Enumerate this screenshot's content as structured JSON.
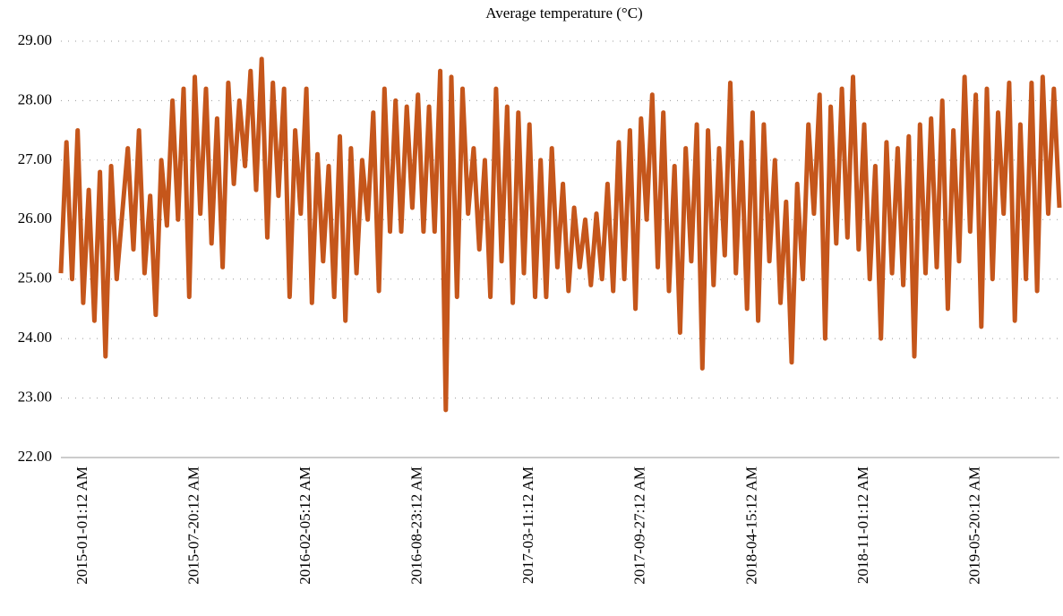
{
  "chart_data": {
    "type": "line",
    "title": "Average temperature (°C)",
    "color": "#c5561b",
    "grid": true,
    "ylim": [
      22,
      29
    ],
    "yticks": [
      {
        "value": 22,
        "label": "22.00"
      },
      {
        "value": 23,
        "label": "23.00"
      },
      {
        "value": 24,
        "label": "24.00"
      },
      {
        "value": 25,
        "label": "25.00"
      },
      {
        "value": 26,
        "label": "26.00"
      },
      {
        "value": 27,
        "label": "27.00"
      },
      {
        "value": 28,
        "label": "28.00"
      },
      {
        "value": 29,
        "label": "29.00"
      }
    ],
    "categories": [
      null,
      null,
      null,
      null,
      "2015-01-01:12 AM",
      null,
      null,
      null,
      null,
      null,
      null,
      null,
      null,
      null,
      null,
      null,
      null,
      null,
      null,
      null,
      null,
      null,
      null,
      null,
      "2015-07-20:12 AM",
      null,
      null,
      null,
      null,
      null,
      null,
      null,
      null,
      null,
      null,
      null,
      null,
      null,
      null,
      null,
      null,
      null,
      null,
      null,
      "2016-02-05:12 AM",
      null,
      null,
      null,
      null,
      null,
      null,
      null,
      null,
      null,
      null,
      null,
      null,
      null,
      null,
      null,
      null,
      null,
      null,
      null,
      "2016-08-23:12 AM",
      null,
      null,
      null,
      null,
      null,
      null,
      null,
      null,
      null,
      null,
      null,
      null,
      null,
      null,
      null,
      null,
      null,
      null,
      null,
      "2017-03-11:12 AM",
      null,
      null,
      null,
      null,
      null,
      null,
      null,
      null,
      null,
      null,
      null,
      null,
      null,
      null,
      null,
      null,
      null,
      null,
      null,
      "2017-09-27:12 AM",
      null,
      null,
      null,
      null,
      null,
      null,
      null,
      null,
      null,
      null,
      null,
      null,
      null,
      null,
      null,
      null,
      null,
      null,
      null,
      "2018-04-15:12 AM",
      null,
      null,
      null,
      null,
      null,
      null,
      null,
      null,
      null,
      null,
      null,
      null,
      null,
      null,
      null,
      null,
      null,
      null,
      null,
      "2018-11-01:12 AM",
      null,
      null,
      null,
      null,
      null,
      null,
      null,
      null,
      null,
      null,
      null,
      null,
      null,
      null,
      null,
      null,
      null,
      null,
      null,
      "2019-05-20:12 AM",
      null,
      null,
      null,
      null,
      null,
      null,
      null,
      null,
      null,
      null,
      null,
      null,
      null,
      null,
      null
    ],
    "values": [
      25.1,
      27.3,
      25.0,
      27.5,
      24.6,
      26.5,
      24.3,
      26.8,
      23.7,
      26.9,
      25.0,
      26.1,
      27.2,
      25.5,
      27.5,
      25.1,
      26.4,
      24.4,
      27.0,
      25.9,
      28.0,
      26.0,
      28.2,
      24.7,
      28.4,
      26.1,
      28.2,
      25.6,
      27.7,
      25.2,
      28.3,
      26.6,
      28.0,
      26.9,
      28.5,
      26.5,
      28.7,
      25.7,
      28.3,
      26.4,
      28.2,
      24.7,
      27.5,
      26.1,
      28.2,
      24.6,
      27.1,
      25.3,
      26.9,
      24.7,
      27.4,
      24.3,
      27.2,
      25.1,
      27.0,
      26.0,
      27.8,
      24.8,
      28.2,
      25.8,
      28.0,
      25.8,
      27.9,
      26.2,
      28.1,
      25.8,
      27.9,
      25.8,
      28.5,
      22.8,
      28.4,
      24.7,
      28.2,
      26.1,
      27.2,
      25.5,
      27.0,
      24.7,
      28.2,
      25.3,
      27.9,
      24.6,
      27.8,
      25.1,
      27.6,
      24.7,
      27.0,
      24.7,
      27.2,
      25.2,
      26.6,
      24.8,
      26.2,
      25.2,
      26.0,
      24.9,
      26.1,
      25.0,
      26.6,
      24.8,
      27.3,
      25.0,
      27.5,
      24.5,
      27.7,
      26.0,
      28.1,
      25.2,
      27.8,
      24.8,
      26.9,
      24.1,
      27.2,
      25.3,
      27.6,
      23.5,
      27.5,
      24.9,
      27.2,
      25.4,
      28.3,
      25.1,
      27.3,
      24.5,
      27.8,
      24.3,
      27.6,
      25.3,
      27.0,
      24.6,
      26.3,
      23.6,
      26.6,
      25.0,
      27.6,
      26.1,
      28.1,
      24.0,
      27.9,
      25.6,
      28.2,
      25.7,
      28.4,
      25.5,
      27.6,
      25.0,
      26.9,
      24.0,
      27.3,
      25.1,
      27.2,
      24.9,
      27.4,
      23.7,
      27.6,
      25.1,
      27.7,
      25.2,
      28.0,
      24.5,
      27.5,
      25.3,
      28.4,
      25.8,
      28.1,
      24.2,
      28.2,
      25.0,
      27.8,
      26.1,
      28.3,
      24.3,
      27.6,
      25.0,
      28.3,
      24.8,
      28.4,
      26.1,
      28.2,
      26.2
    ]
  }
}
